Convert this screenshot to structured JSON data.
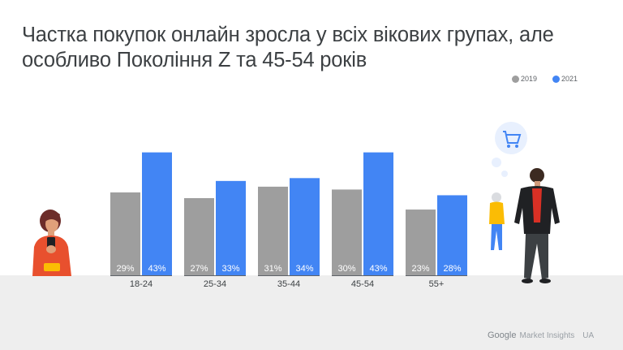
{
  "title_line1": "Частка покупок онлайн зросла у всіх вікових групах, але",
  "title_line2": "особливо Покоління Z та 45-54 років",
  "legend": {
    "y2019": "2019",
    "y2021": "2021"
  },
  "colors": {
    "y2019": "#9e9e9e",
    "y2021": "#4285f4",
    "floor": "#eeeeee"
  },
  "chart_data": {
    "type": "bar",
    "categories": [
      "18-24",
      "25-34",
      "35-44",
      "45-54",
      "55+"
    ],
    "series": [
      {
        "name": "2019",
        "values": [
          29,
          27,
          31,
          30,
          23
        ],
        "labels": [
          "29%",
          "27%",
          "31%",
          "30%",
          "23%"
        ]
      },
      {
        "name": "2021",
        "values": [
          43,
          33,
          34,
          43,
          28
        ],
        "labels": [
          "43%",
          "33%",
          "34%",
          "43%",
          "28%"
        ]
      }
    ],
    "ylim": [
      0,
      50
    ],
    "grid": false,
    "legend_position": "top-right"
  },
  "footer": {
    "brand": "Google",
    "product": "Market Insights",
    "region": "UA"
  },
  "icons": [
    "person-phone-icon",
    "shopping-cart-icon",
    "walking-man-icon",
    "walking-woman-icon"
  ]
}
